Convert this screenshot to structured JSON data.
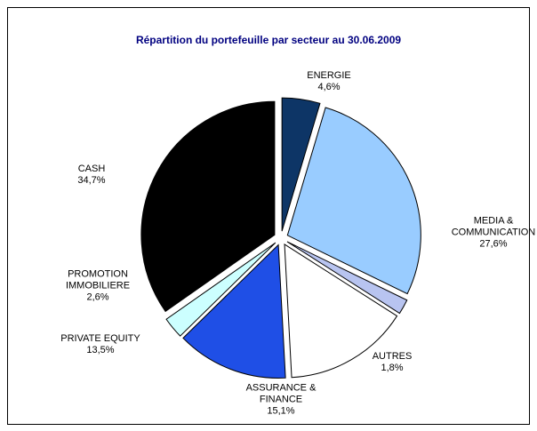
{
  "chart_data": {
    "type": "pie",
    "title": "Répartition du portefeuille par secteur au 30.06.2009",
    "categories": [
      "ENERGIE",
      "MEDIA & COMMUNICATION",
      "AUTRES",
      "ASSURANCE & FINANCE",
      "PRIVATE EQUITY",
      "PROMOTION IMMOBILIERE",
      "CASH"
    ],
    "values": [
      4.6,
      27.6,
      1.8,
      15.1,
      13.5,
      2.6,
      34.7
    ],
    "value_labels": [
      "4,6%",
      "27,6%",
      "1,8%",
      "15,1%",
      "13,5%",
      "2,6%",
      "34,7%"
    ],
    "colors": [
      "#0d3566",
      "#99ccff",
      "#b8c4f0",
      "#ffffff",
      "#1f4fe6",
      "#ccffff",
      "#000000"
    ]
  }
}
